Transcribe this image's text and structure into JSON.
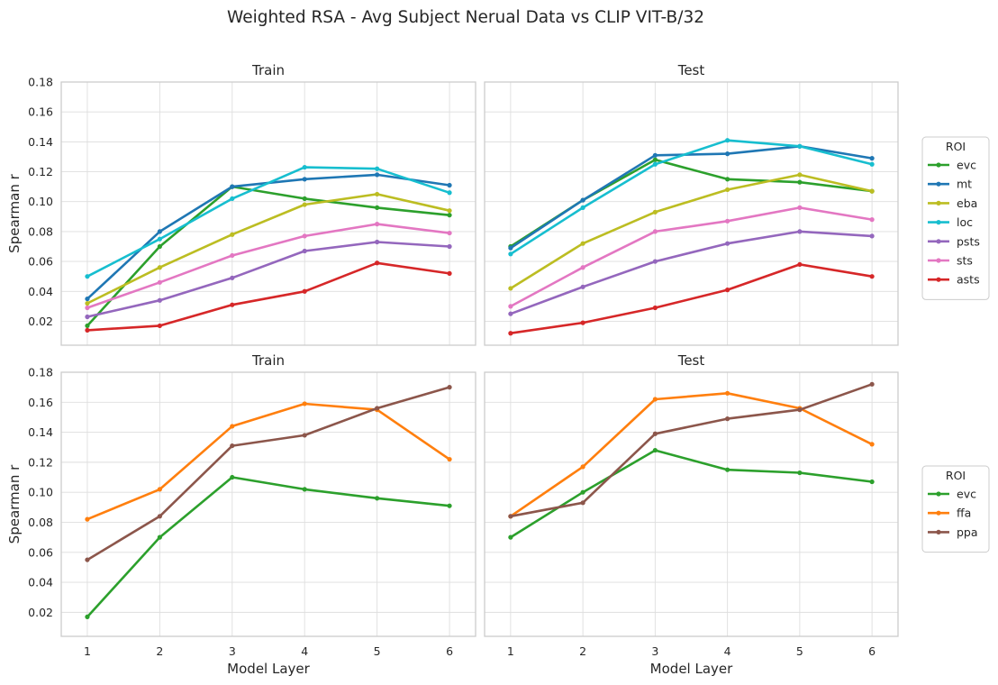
{
  "figure": {
    "title": "Weighted RSA - Avg Subject Nerual Data vs CLIP VIT-B/32"
  },
  "legend_title": "ROI",
  "chart_data": [
    {
      "type": "line",
      "title": "Train",
      "xlabel": "",
      "ylabel": "Spearman r",
      "x": [
        1,
        2,
        3,
        4,
        5,
        6
      ],
      "ylim": [
        0.004,
        0.18
      ],
      "yticks": [
        "0.02",
        "0.04",
        "0.06",
        "0.08",
        "0.10",
        "0.12",
        "0.14",
        "0.16",
        "0.18"
      ],
      "grid": true,
      "series": [
        {
          "name": "evc",
          "color": "#2ca02c",
          "values": [
            0.017,
            0.07,
            0.11,
            0.102,
            0.096,
            0.091
          ]
        },
        {
          "name": "mt",
          "color": "#1f77b4",
          "values": [
            0.035,
            0.08,
            0.11,
            0.115,
            0.118,
            0.111
          ]
        },
        {
          "name": "eba",
          "color": "#bcbd22",
          "values": [
            0.032,
            0.056,
            0.078,
            0.098,
            0.105,
            0.094
          ]
        },
        {
          "name": "loc",
          "color": "#17becf",
          "values": [
            0.05,
            0.075,
            0.102,
            0.123,
            0.122,
            0.106
          ]
        },
        {
          "name": "psts",
          "color": "#9467bd",
          "values": [
            0.023,
            0.034,
            0.049,
            0.067,
            0.073,
            0.07
          ]
        },
        {
          "name": "sts",
          "color": "#e377c2",
          "values": [
            0.029,
            0.046,
            0.064,
            0.077,
            0.085,
            0.079
          ]
        },
        {
          "name": "asts",
          "color": "#d62728",
          "values": [
            0.014,
            0.017,
            0.031,
            0.04,
            0.059,
            0.052
          ]
        }
      ]
    },
    {
      "type": "line",
      "title": "Test",
      "xlabel": "",
      "ylabel": "",
      "x": [
        1,
        2,
        3,
        4,
        5,
        6
      ],
      "ylim": [
        0.004,
        0.18
      ],
      "grid": true,
      "legend": "right",
      "series": [
        {
          "name": "evc",
          "color": "#2ca02c",
          "values": [
            0.07,
            0.101,
            0.128,
            0.115,
            0.113,
            0.107
          ]
        },
        {
          "name": "mt",
          "color": "#1f77b4",
          "values": [
            0.069,
            0.101,
            0.131,
            0.132,
            0.137,
            0.129
          ]
        },
        {
          "name": "eba",
          "color": "#bcbd22",
          "values": [
            0.042,
            0.072,
            0.093,
            0.108,
            0.118,
            0.107
          ]
        },
        {
          "name": "loc",
          "color": "#17becf",
          "values": [
            0.065,
            0.096,
            0.125,
            0.141,
            0.137,
            0.125
          ]
        },
        {
          "name": "psts",
          "color": "#9467bd",
          "values": [
            0.025,
            0.043,
            0.06,
            0.072,
            0.08,
            0.077
          ]
        },
        {
          "name": "sts",
          "color": "#e377c2",
          "values": [
            0.03,
            0.056,
            0.08,
            0.087,
            0.096,
            0.088
          ]
        },
        {
          "name": "asts",
          "color": "#d62728",
          "values": [
            0.012,
            0.019,
            0.029,
            0.041,
            0.058,
            0.05
          ]
        }
      ]
    },
    {
      "type": "line",
      "title": "Train",
      "xlabel": "Model Layer",
      "ylabel": "Spearman r",
      "x": [
        1,
        2,
        3,
        4,
        5,
        6
      ],
      "xticks": [
        "1",
        "2",
        "3",
        "4",
        "5",
        "6"
      ],
      "ylim": [
        0.004,
        0.18
      ],
      "yticks": [
        "0.02",
        "0.04",
        "0.06",
        "0.08",
        "0.10",
        "0.12",
        "0.14",
        "0.16",
        "0.18"
      ],
      "grid": true,
      "series": [
        {
          "name": "evc",
          "color": "#2ca02c",
          "values": [
            0.017,
            0.07,
            0.11,
            0.102,
            0.096,
            0.091
          ]
        },
        {
          "name": "ffa",
          "color": "#ff7f0e",
          "values": [
            0.082,
            0.102,
            0.144,
            0.159,
            0.155,
            0.122
          ]
        },
        {
          "name": "ppa",
          "color": "#8c564b",
          "values": [
            0.055,
            0.084,
            0.131,
            0.138,
            0.156,
            0.17
          ]
        }
      ]
    },
    {
      "type": "line",
      "title": "Test",
      "xlabel": "Model Layer",
      "ylabel": "",
      "x": [
        1,
        2,
        3,
        4,
        5,
        6
      ],
      "xticks": [
        "1",
        "2",
        "3",
        "4",
        "5",
        "6"
      ],
      "ylim": [
        0.004,
        0.18
      ],
      "grid": true,
      "legend": "right",
      "series": [
        {
          "name": "evc",
          "color": "#2ca02c",
          "values": [
            0.07,
            0.1,
            0.128,
            0.115,
            0.113,
            0.107
          ]
        },
        {
          "name": "ffa",
          "color": "#ff7f0e",
          "values": [
            0.084,
            0.117,
            0.162,
            0.166,
            0.156,
            0.132
          ]
        },
        {
          "name": "ppa",
          "color": "#8c564b",
          "values": [
            0.084,
            0.093,
            0.139,
            0.149,
            0.155,
            0.172
          ]
        }
      ]
    }
  ]
}
